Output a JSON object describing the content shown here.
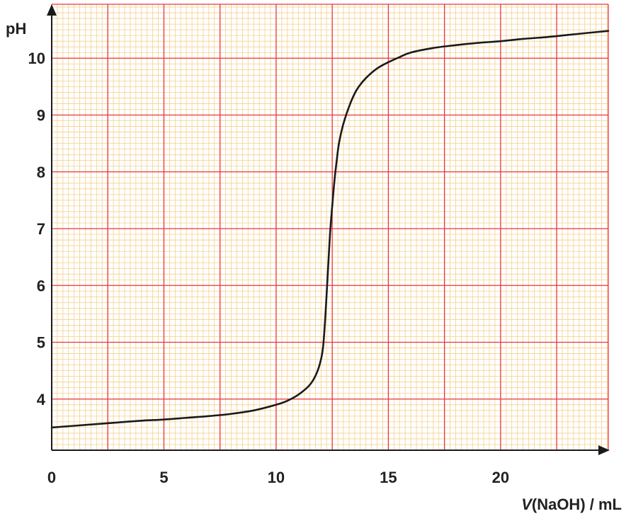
{
  "chart_data": {
    "type": "line",
    "title": "",
    "xlabel": {
      "italic_part": "V",
      "rest": "(NaOH) / mL"
    },
    "ylabel": "pH",
    "xlim": [
      0,
      24.8
    ],
    "ylim": [
      3.1,
      10.95
    ],
    "x_ticks": [
      0,
      5,
      10,
      15,
      20
    ],
    "y_ticks": [
      4,
      5,
      6,
      7,
      8,
      9,
      10
    ],
    "x_tick_labels": [
      "0",
      "5",
      "10",
      "15",
      "20"
    ],
    "y_tick_labels": [
      "4",
      "5",
      "6",
      "7",
      "8",
      "9",
      "10"
    ],
    "grid": {
      "major_step_x": 2.5,
      "major_step_y": 1,
      "minor_step_x": 0.25,
      "minor_step_y": 0.1,
      "major_color": "#e8363a",
      "minor_color": "#f5cf8c"
    },
    "line_color": "#1a1a1a",
    "series": [
      {
        "name": "",
        "x": [
          0,
          1,
          2,
          3,
          4,
          5,
          6,
          7,
          8,
          9,
          10,
          10.5,
          11,
          11.5,
          11.8,
          12,
          12.1,
          12.2,
          12.3,
          12.4,
          12.5,
          12.6,
          12.7,
          12.8,
          13,
          13.3,
          13.6,
          14,
          14.5,
          15,
          15.5,
          16,
          17,
          18,
          19,
          20,
          21,
          22,
          23,
          24,
          24.8
        ],
        "y": [
          3.5,
          3.53,
          3.56,
          3.59,
          3.62,
          3.64,
          3.67,
          3.7,
          3.74,
          3.8,
          3.9,
          3.97,
          4.08,
          4.25,
          4.45,
          4.7,
          4.95,
          5.5,
          6.2,
          6.9,
          7.4,
          7.85,
          8.2,
          8.5,
          8.85,
          9.2,
          9.45,
          9.65,
          9.82,
          9.93,
          10.02,
          10.1,
          10.18,
          10.23,
          10.27,
          10.3,
          10.34,
          10.37,
          10.41,
          10.45,
          10.48
        ]
      }
    ]
  }
}
